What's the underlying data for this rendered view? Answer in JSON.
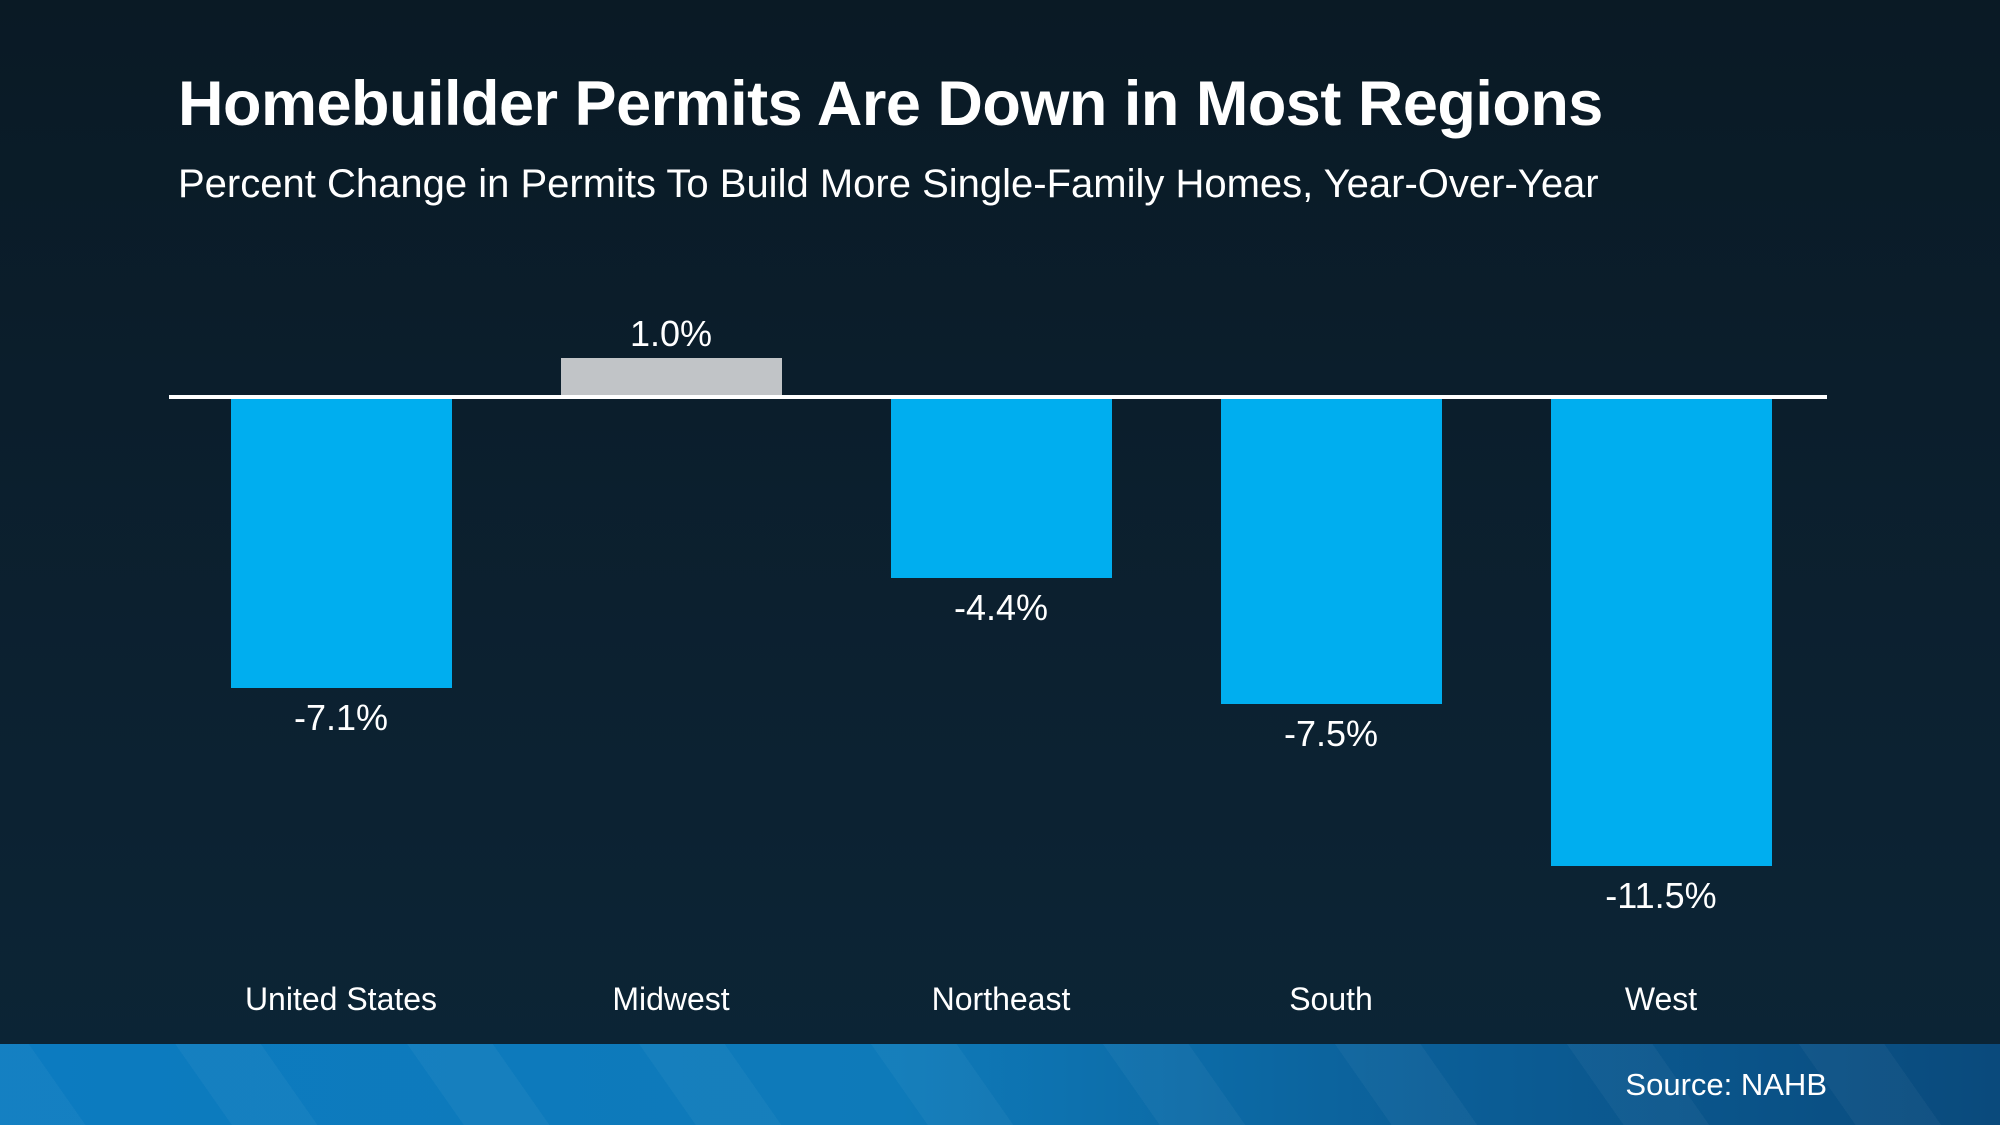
{
  "header": {
    "title": "Homebuilder Permits Are Down in Most Regions",
    "subtitle": "Percent Change in Permits To Build More Single-Family Homes, Year-Over-Year"
  },
  "footer": {
    "source": "Source: NAHB"
  },
  "chart_data": {
    "type": "bar",
    "categories": [
      "United States",
      "Midwest",
      "Northeast",
      "South",
      "West"
    ],
    "values": [
      -7.1,
      1.0,
      -4.4,
      -7.5,
      -11.5
    ],
    "value_labels": [
      "-7.1%",
      "1.0%",
      "-4.4%",
      "-7.5%",
      "-11.5%"
    ],
    "title": "Homebuilder Permits Are Down in Most Regions",
    "xlabel": "",
    "ylabel": "",
    "ylim": [
      -12,
      2
    ],
    "baseline": 0,
    "grid": false,
    "legend": false,
    "data_label_position": "outside-end",
    "bar_color_negative": "#00aeef",
    "bar_color_positive": "#c1c4c7"
  },
  "colors": {
    "background_top": "#0a1a25",
    "background_bottom": "#0b2536",
    "axis_line": "#ffffff",
    "bar_blue": "#00aeef",
    "bar_gray": "#c1c4c7",
    "footer_gradient_left": "#0c7bc0",
    "footer_gradient_right": "#0a4a7c",
    "text": "#ffffff"
  }
}
